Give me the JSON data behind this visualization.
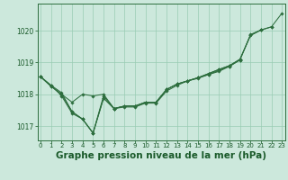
{
  "background_color": "#cce8dc",
  "grid_color": "#99ccb3",
  "line_color": "#2d6e3e",
  "marker_color": "#2d6e3e",
  "xlabel": "Graphe pression niveau de la mer (hPa)",
  "xlabel_fontsize": 7.5,
  "ylim": [
    1016.55,
    1020.85
  ],
  "yticks": [
    1017,
    1018,
    1019,
    1020
  ],
  "xlim": [
    -0.3,
    23.3
  ],
  "xticks": [
    0,
    1,
    2,
    3,
    4,
    5,
    6,
    7,
    8,
    9,
    10,
    11,
    12,
    13,
    14,
    15,
    16,
    17,
    18,
    19,
    20,
    21,
    22,
    23
  ],
  "series": [
    [
      1018.55,
      1018.28,
      1017.95,
      1017.4,
      1017.22,
      1016.78,
      1017.95,
      1017.55,
      1017.63,
      1017.63,
      1017.75,
      1017.75,
      1018.15,
      1018.32,
      1018.42,
      1018.52,
      1018.62,
      1018.75,
      1018.88,
      1019.08,
      1019.88,
      1020.02,
      null,
      null
    ],
    [
      1018.55,
      1018.25,
      1018.0,
      1017.75,
      1018.0,
      1017.95,
      1018.0,
      1017.55,
      1017.6,
      1017.6,
      1017.72,
      1017.72,
      1018.1,
      1018.28,
      1018.42,
      1018.5,
      1018.62,
      1018.72,
      1018.88,
      1019.08,
      null,
      null,
      null,
      null
    ],
    [
      1018.55,
      1018.25,
      1018.0,
      1017.45,
      1017.22,
      1016.78,
      1017.88,
      1017.55,
      1017.63,
      1017.63,
      1017.75,
      1017.75,
      1018.15,
      1018.32,
      1018.42,
      1018.52,
      1018.65,
      1018.78,
      1018.9,
      1019.1,
      1019.85,
      1020.02,
      1020.12,
      null
    ],
    [
      1018.55,
      1018.28,
      1018.05,
      1017.45,
      1017.22,
      1016.78,
      1017.88,
      1017.55,
      1017.63,
      1017.63,
      1017.75,
      1017.75,
      1018.15,
      1018.32,
      1018.42,
      1018.52,
      1018.65,
      1018.78,
      1018.9,
      1019.1,
      1019.85,
      1020.02,
      1020.12,
      1020.55
    ]
  ]
}
